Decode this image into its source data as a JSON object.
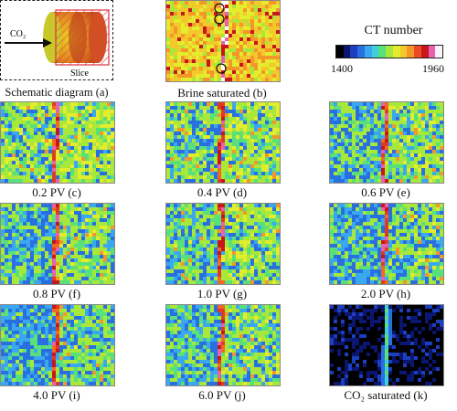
{
  "schematic": {
    "co2_label": "CO₂",
    "slice_label": "Slice",
    "caption": "Schematic diagram (a)"
  },
  "colorbar": {
    "title": "CT number",
    "min_label": "1400",
    "max_label": "1960",
    "colors": [
      "#000000",
      "#0a1670",
      "#1c3fbf",
      "#2a6fe0",
      "#3aa8f0",
      "#3dd0d8",
      "#58e07a",
      "#a8e83a",
      "#e4ec2e",
      "#f2c82a",
      "#f4962a",
      "#ea4a24",
      "#c8161c",
      "#e860b0",
      "#f8f4f8"
    ]
  },
  "panels": [
    {
      "id": "b",
      "caption": "Brine saturated (b)",
      "kind": "brine"
    },
    {
      "id": "c",
      "caption": "0.2 PV (c)",
      "kind": "flood",
      "blue": 0.18
    },
    {
      "id": "d",
      "caption": "0.4 PV (d)",
      "kind": "flood",
      "blue": 0.26
    },
    {
      "id": "e",
      "caption": "0.6 PV (e)",
      "kind": "flood",
      "blue": 0.36
    },
    {
      "id": "f",
      "caption": "0.8 PV (f)",
      "kind": "flood",
      "blue": 0.4
    },
    {
      "id": "g",
      "caption": "1.0 PV (g)",
      "kind": "flood",
      "blue": 0.3
    },
    {
      "id": "h",
      "caption": "2.0 PV (h)",
      "kind": "flood",
      "blue": 0.46
    },
    {
      "id": "i",
      "caption": "4.0 PV (i)",
      "kind": "flood",
      "blue": 0.52
    },
    {
      "id": "j",
      "caption": "6.0 PV (j)",
      "kind": "flood",
      "blue": 0.42
    },
    {
      "id": "k",
      "caption": "CO₂ saturated (k)",
      "kind": "co2"
    }
  ]
}
